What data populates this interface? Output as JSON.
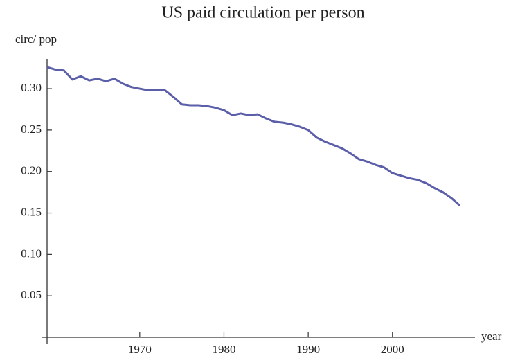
{
  "chart_data": {
    "type": "line",
    "title": "US paid circulation per person",
    "ylabel": "circ/ pop",
    "xlabel": "year",
    "x": [
      1959,
      1960,
      1961,
      1962,
      1963,
      1964,
      1965,
      1966,
      1967,
      1968,
      1969,
      1970,
      1971,
      1972,
      1973,
      1974,
      1975,
      1976,
      1977,
      1978,
      1979,
      1980,
      1981,
      1982,
      1983,
      1984,
      1985,
      1986,
      1987,
      1988,
      1989,
      1990,
      1991,
      1992,
      1993,
      1994,
      1995,
      1996,
      1997,
      1998,
      1999,
      2000,
      2001,
      2002,
      2003,
      2004,
      2005,
      2006,
      2007,
      2008
    ],
    "series": [
      {
        "color": "#5b5ea8",
        "values": [
          0.326,
          0.323,
          0.322,
          0.311,
          0.315,
          0.31,
          0.312,
          0.309,
          0.312,
          0.306,
          0.302,
          0.3,
          0.298,
          0.298,
          0.298,
          0.29,
          0.281,
          0.28,
          0.28,
          0.279,
          0.277,
          0.274,
          0.268,
          0.27,
          0.268,
          0.269,
          0.264,
          0.26,
          0.259,
          0.257,
          0.254,
          0.25,
          0.241,
          0.236,
          0.232,
          0.228,
          0.222,
          0.215,
          0.212,
          0.208,
          0.205,
          0.198,
          0.195,
          0.192,
          0.19,
          0.186,
          0.18,
          0.175,
          0.168,
          0.159
        ]
      }
    ],
    "xlim": [
      1959,
      2009.8
    ],
    "ylim": [
      0,
      0.336
    ],
    "xticks": [
      1970,
      1980,
      1990,
      2000
    ],
    "yticks": [
      {
        "value": 0.05,
        "label": "0.05"
      },
      {
        "value": 0.1,
        "label": "0.10"
      },
      {
        "value": 0.15,
        "label": "0.15"
      },
      {
        "value": 0.2,
        "label": "0.20"
      },
      {
        "value": 0.25,
        "label": "0.25"
      },
      {
        "value": 0.3,
        "label": "0.30"
      }
    ]
  }
}
